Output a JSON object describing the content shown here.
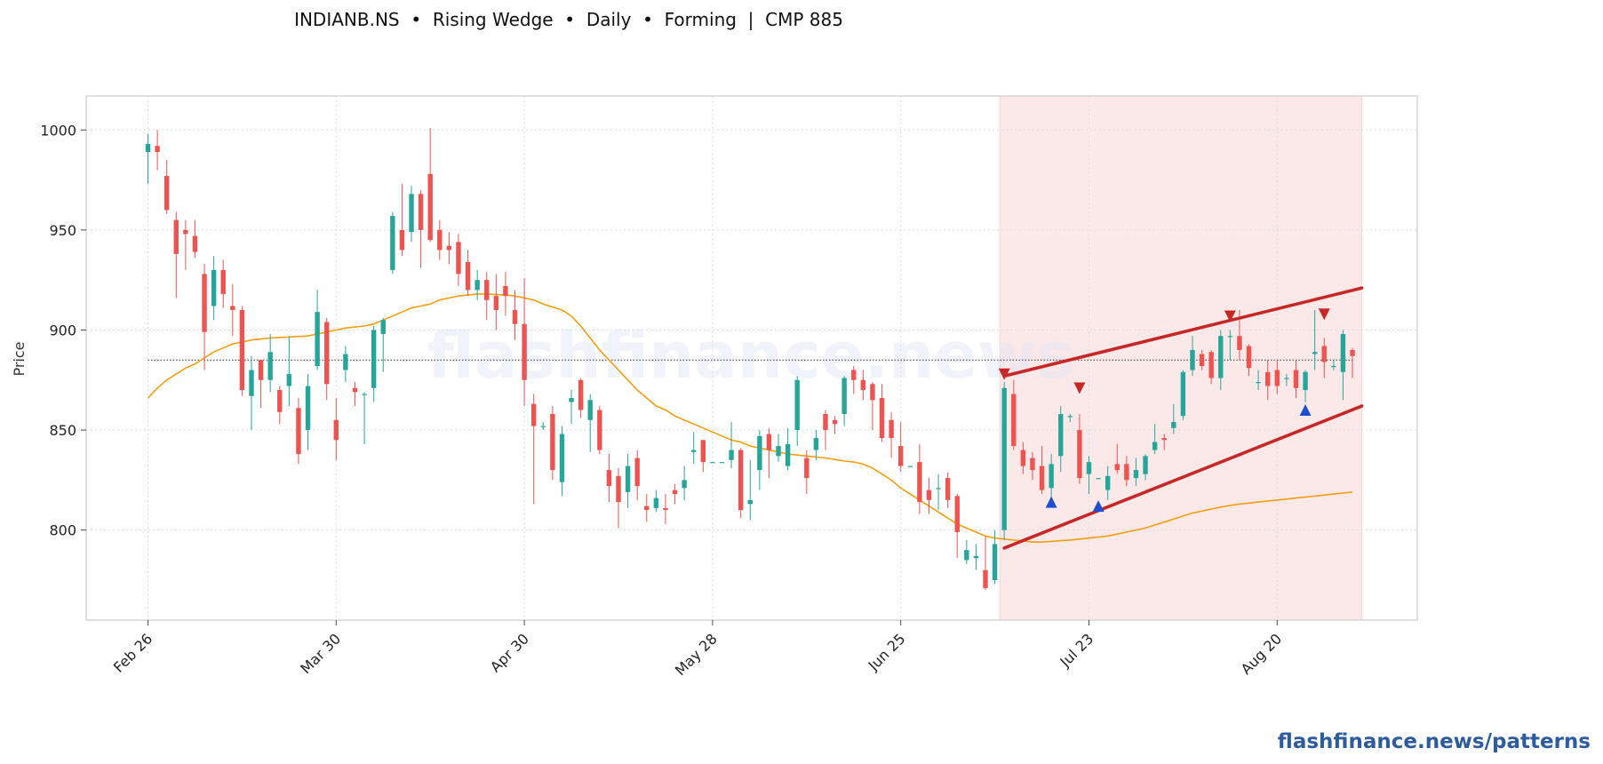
{
  "title": "INDIANB.NS  •  Rising Wedge  •  Daily  •  Forming  |  CMP 885",
  "footer": "flashfinance.news/patterns",
  "watermark": "flashfinance.news",
  "colors": {
    "up": "#26a69a",
    "down": "#ef5350",
    "ma": "#f59e0b",
    "trendline": "#c62828",
    "zone": "#fbe9e9",
    "marker_top": "#c62828",
    "marker_bottom": "#1f4fd1",
    "cmp_line": "#333333"
  },
  "chart_data": {
    "type": "candlestick",
    "title": "INDIANB.NS  •  Rising Wedge  •  Daily  •  Forming  |  CMP 885",
    "ylabel": "Price",
    "ylim": [
      755,
      1017
    ],
    "grid": true,
    "yticks": [
      800,
      850,
      900,
      950,
      1000
    ],
    "xticks": [
      {
        "label": "Feb 26",
        "index": 0
      },
      {
        "label": "Mar 30",
        "index": 20
      },
      {
        "label": "Apr 30",
        "index": 40
      },
      {
        "label": "May 28",
        "index": 60
      },
      {
        "label": "Jun 25",
        "index": 80
      },
      {
        "label": "Jul 23",
        "index": 100
      },
      {
        "label": "Aug 20",
        "index": 120
      }
    ],
    "candles": [
      [
        989,
        993,
        998,
        973
      ],
      [
        992,
        989,
        1000,
        980
      ],
      [
        977,
        960,
        985,
        958
      ],
      [
        955,
        938,
        959,
        916
      ],
      [
        950,
        948,
        955,
        930
      ],
      [
        947,
        939,
        955,
        936
      ],
      [
        928,
        899,
        933,
        880
      ],
      [
        912,
        930,
        937,
        905
      ],
      [
        930,
        918,
        935,
        911
      ],
      [
        912,
        910,
        923,
        897
      ],
      [
        910,
        870,
        912,
        867
      ],
      [
        867,
        880,
        887,
        850
      ],
      [
        885,
        875,
        885,
        861
      ],
      [
        875,
        889,
        898,
        869
      ],
      [
        870,
        859,
        872,
        853
      ],
      [
        872,
        878,
        897,
        862
      ],
      [
        861,
        838,
        866,
        833
      ],
      [
        850,
        872,
        878,
        840
      ],
      [
        882,
        909,
        920,
        880
      ],
      [
        904,
        873,
        906,
        865
      ],
      [
        855,
        845,
        866,
        835
      ],
      [
        880,
        888,
        892,
        874
      ],
      [
        871,
        869,
        874,
        862
      ],
      [
        868,
        868,
        869,
        843
      ],
      [
        871,
        900,
        902,
        864
      ],
      [
        898,
        905,
        906,
        879
      ],
      [
        930,
        957,
        959,
        928
      ],
      [
        950,
        940,
        973,
        937
      ],
      [
        949,
        968,
        972,
        944
      ],
      [
        968,
        950,
        970,
        931
      ],
      [
        978,
        945,
        1001,
        944
      ],
      [
        950,
        940,
        955,
        935
      ],
      [
        942,
        940,
        949,
        933
      ],
      [
        944,
        928,
        948,
        922
      ],
      [
        934,
        920,
        940,
        917
      ],
      [
        920,
        925,
        930,
        915
      ],
      [
        925,
        915,
        929,
        905
      ],
      [
        917,
        910,
        928,
        900
      ],
      [
        922,
        917,
        929,
        907
      ],
      [
        910,
        903,
        920,
        895
      ],
      [
        903,
        875,
        926,
        862
      ],
      [
        863,
        852,
        868,
        813
      ],
      [
        852,
        852,
        854,
        850
      ],
      [
        858,
        830,
        862,
        825
      ],
      [
        824,
        848,
        852,
        817
      ],
      [
        864,
        866,
        870,
        853
      ],
      [
        875,
        860,
        876,
        856
      ],
      [
        855,
        865,
        868,
        839
      ],
      [
        860,
        840,
        862,
        838
      ],
      [
        830,
        822,
        838,
        814
      ],
      [
        827,
        814,
        831,
        801
      ],
      [
        819,
        832,
        838,
        811
      ],
      [
        836,
        822,
        840,
        815
      ],
      [
        812,
        810,
        818,
        804
      ],
      [
        811,
        816,
        820,
        809
      ],
      [
        811,
        810,
        818,
        803
      ],
      [
        820,
        818,
        823,
        813
      ],
      [
        821,
        825,
        832,
        815
      ],
      [
        839,
        840,
        849,
        833
      ],
      [
        845,
        834,
        845,
        829
      ],
      [
        834,
        834,
        834,
        834
      ],
      [
        834,
        834,
        834,
        834
      ],
      [
        835,
        840,
        854,
        831
      ],
      [
        840,
        810,
        841,
        806
      ],
      [
        813,
        815,
        835,
        805
      ],
      [
        830,
        847,
        850,
        820
      ],
      [
        848,
        840,
        851,
        826
      ],
      [
        837,
        842,
        848,
        834
      ],
      [
        832,
        843,
        851,
        830
      ],
      [
        850,
        875,
        877,
        842
      ],
      [
        836,
        826,
        840,
        818
      ],
      [
        840,
        846,
        850,
        835
      ],
      [
        858,
        850,
        860,
        840
      ],
      [
        855,
        853,
        857,
        848
      ],
      [
        858,
        876,
        877,
        852
      ],
      [
        880,
        875,
        882,
        868
      ],
      [
        875,
        870,
        880,
        865
      ],
      [
        873,
        865,
        874,
        850
      ],
      [
        866,
        846,
        873,
        844
      ],
      [
        855,
        846,
        859,
        836
      ],
      [
        842,
        832,
        854,
        829
      ],
      [
        832,
        832,
        832,
        832
      ],
      [
        834,
        814,
        843,
        808
      ],
      [
        820,
        815,
        826,
        808
      ],
      [
        821,
        821,
        828,
        810
      ],
      [
        826,
        815,
        829,
        811
      ],
      [
        817,
        799,
        818,
        786
      ],
      [
        785,
        790,
        795,
        783
      ],
      [
        786,
        787,
        793,
        780
      ],
      [
        780,
        771,
        797,
        770
      ],
      [
        775,
        793,
        800,
        773
      ],
      [
        800,
        871,
        874,
        795
      ],
      [
        868,
        842,
        875,
        840
      ],
      [
        840,
        832,
        844,
        828
      ],
      [
        836,
        830,
        839,
        825
      ],
      [
        832,
        820,
        842,
        818
      ],
      [
        821,
        833,
        838,
        815
      ],
      [
        837,
        858,
        862,
        829
      ],
      [
        857,
        857,
        858,
        854
      ],
      [
        850,
        826,
        858,
        823
      ],
      [
        828,
        834,
        837,
        818
      ],
      [
        826,
        826,
        826,
        826
      ],
      [
        820,
        827,
        832,
        815
      ],
      [
        833,
        830,
        843,
        828
      ],
      [
        833,
        825,
        837,
        822
      ],
      [
        826,
        830,
        836,
        822
      ],
      [
        828,
        837,
        838,
        825
      ],
      [
        840,
        844,
        853,
        838
      ],
      [
        846,
        845,
        848,
        840
      ],
      [
        851,
        854,
        863,
        848
      ],
      [
        857,
        879,
        880,
        855
      ],
      [
        880,
        890,
        897,
        877
      ],
      [
        888,
        882,
        890,
        880
      ],
      [
        889,
        876,
        890,
        873
      ],
      [
        876,
        897,
        900,
        870
      ],
      [
        897,
        897,
        900,
        885
      ],
      [
        897,
        890,
        910,
        885
      ],
      [
        892,
        881,
        893,
        877
      ],
      [
        874,
        874,
        880,
        870
      ],
      [
        879,
        872,
        885,
        865
      ],
      [
        880,
        872,
        885,
        868
      ],
      [
        876,
        876,
        878,
        872
      ],
      [
        880,
        871,
        885,
        866
      ],
      [
        870,
        879,
        880,
        864
      ],
      [
        888,
        889,
        910,
        880
      ],
      [
        892,
        884,
        896,
        876
      ],
      [
        882,
        882,
        885,
        880
      ],
      [
        879,
        898,
        900,
        865
      ],
      [
        890,
        887,
        891,
        876
      ]
    ],
    "ma_values": [
      866,
      871,
      875,
      878,
      881,
      883,
      886,
      889,
      891,
      893,
      894,
      895,
      895.5,
      896,
      896.3,
      896.5,
      896.8,
      897,
      898,
      899,
      900,
      901,
      901.5,
      902,
      903,
      905,
      907,
      909,
      911,
      912,
      913,
      915,
      916,
      917,
      917.5,
      918,
      918,
      917.7,
      917.5,
      917,
      916,
      915,
      913,
      911.5,
      910,
      907,
      902,
      896,
      890,
      885,
      880,
      875,
      870,
      866,
      862,
      860,
      857,
      855,
      853,
      851,
      849,
      847,
      845,
      844,
      842,
      841,
      840,
      839,
      838,
      837.5,
      837,
      836.5,
      836,
      835.3,
      834.5,
      834,
      833,
      831,
      828,
      825,
      821,
      818,
      815,
      812,
      809,
      806,
      803,
      801,
      799,
      797,
      796,
      795.5,
      795,
      794.5,
      794,
      794,
      794.3,
      794.7,
      795,
      795.5,
      796,
      796.5,
      797,
      798,
      799,
      800,
      801,
      802.5,
      804,
      805.5,
      807,
      808.5,
      809.5,
      810.5,
      811.5,
      812.3,
      813,
      813.5,
      814,
      814.5,
      815,
      815.5,
      816,
      816.5,
      817,
      817.5,
      818,
      818.5,
      819
    ],
    "cmp": 885,
    "pattern_zone": [
      91,
      129
    ],
    "trendlines": [
      {
        "name": "upper",
        "x": [
          91,
          129
        ],
        "y": [
          877,
          921
        ]
      },
      {
        "name": "lower",
        "x": [
          91,
          129
        ],
        "y": [
          791,
          862
        ]
      }
    ],
    "markers": [
      {
        "type": "top",
        "index": 91,
        "price": 877
      },
      {
        "type": "top",
        "index": 99,
        "price": 870
      },
      {
        "type": "top",
        "index": 115,
        "price": 906
      },
      {
        "type": "top",
        "index": 125,
        "price": 907
      },
      {
        "type": "bottom",
        "index": 96,
        "price": 814
      },
      {
        "type": "bottom",
        "index": 101,
        "price": 812
      },
      {
        "type": "bottom",
        "index": 123,
        "price": 860
      }
    ]
  }
}
